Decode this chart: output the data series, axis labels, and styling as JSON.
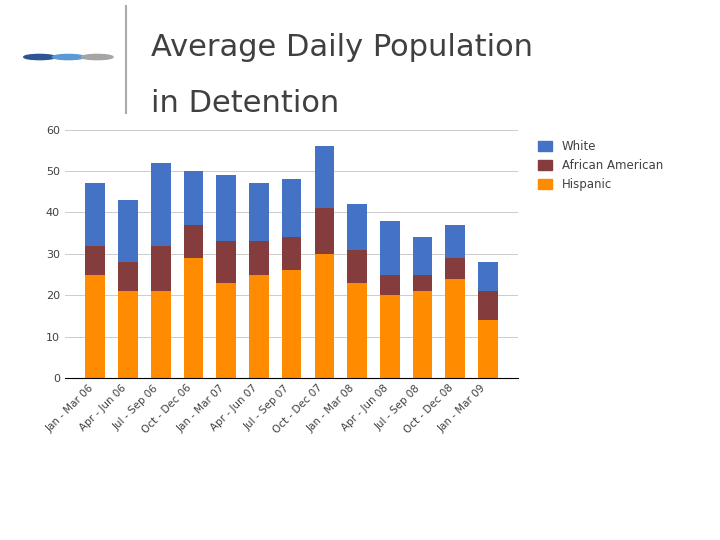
{
  "categories": [
    "Jan - Mar 06",
    "Apr - Jun 06",
    "Jul - Sep 06",
    "Oct - Dec 06",
    "Jan - Mar 07",
    "Apr - Jun 07",
    "Jul - Sep 07",
    "Oct - Dec 07",
    "Jan - Mar 08",
    "Apr - Jun 08",
    "Jul - Sep 08",
    "Oct - Dec 08",
    "Jan - Mar 09"
  ],
  "hispanic": [
    25,
    21,
    21,
    29,
    23,
    25,
    26,
    30,
    23,
    20,
    21,
    24,
    14
  ],
  "african_american": [
    7,
    7,
    11,
    8,
    10,
    8,
    8,
    11,
    8,
    5,
    4,
    5,
    7
  ],
  "white": [
    15,
    15,
    20,
    13,
    16,
    14,
    14,
    15,
    11,
    13,
    9,
    8,
    7
  ],
  "colors": {
    "white": "#4472C4",
    "african_american": "#843C3C",
    "hispanic": "#FF8C00"
  },
  "title_line1": "Average Daily Population",
  "title_line2": "in Detention",
  "title_fontsize": 22,
  "ylim": [
    0,
    60
  ],
  "yticks": [
    0,
    10,
    20,
    30,
    40,
    50,
    60
  ],
  "legend_labels": [
    "White",
    "African American",
    "Hispanic"
  ],
  "background_color": "#FFFFFF",
  "title_color": "#404040",
  "dot_colors": [
    "#2F5496",
    "#5B9BD5",
    "#A5A5A5"
  ]
}
